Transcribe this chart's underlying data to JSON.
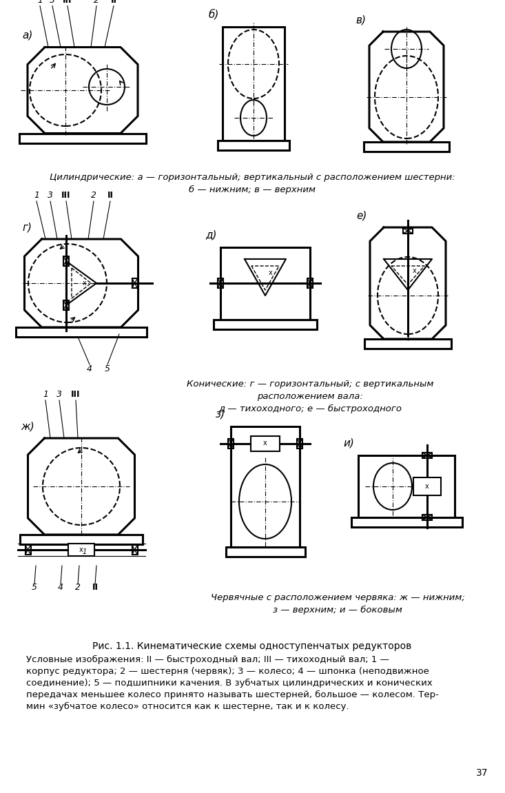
{
  "bg_color": "#ffffff",
  "caption1": "Цилиндрические: а — горизонтальный; вертикальный с расположением шестерни:",
  "caption1b": "б — нижним; в — верхним",
  "caption2": "Конические: г — горизонтальный; с вертикальным",
  "caption2b": "расположением вала:",
  "caption2c": "д — тихоходного; е — быстроходного",
  "caption3": "Червячные с расположением червяка: ж — нижним;",
  "caption3b": "з — верхним; и — боковым",
  "title_caption": "Рис. 1.1. Кинематические схемы одноступенчатых редукторов",
  "page_num": "37"
}
